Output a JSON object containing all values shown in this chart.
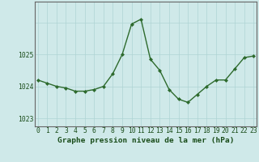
{
  "x": [
    0,
    1,
    2,
    3,
    4,
    5,
    6,
    7,
    8,
    9,
    10,
    11,
    12,
    13,
    14,
    15,
    16,
    17,
    18,
    19,
    20,
    21,
    22,
    23
  ],
  "y": [
    1024.2,
    1024.1,
    1024.0,
    1023.95,
    1023.85,
    1023.85,
    1023.9,
    1024.0,
    1024.4,
    1025.0,
    1025.95,
    1026.1,
    1024.85,
    1024.5,
    1023.9,
    1023.6,
    1023.5,
    1023.75,
    1024.0,
    1024.2,
    1024.2,
    1024.55,
    1024.9,
    1024.95
  ],
  "line_color": "#2d6a2d",
  "marker": "D",
  "marker_size": 2.0,
  "bg_color": "#cfe9e9",
  "grid_color": "#afd4d4",
  "xlabel": "Graphe pression niveau de la mer (hPa)",
  "xlabel_color": "#1a4d1a",
  "xlabel_fontsize": 6.8,
  "xlabel_fontweight": "bold",
  "tick_fontsize": 5.8,
  "tick_color": "#1a4d1a",
  "ylabel_ticks": [
    1023,
    1024,
    1025
  ],
  "xlim": [
    -0.3,
    23.3
  ],
  "ylim": [
    1022.75,
    1026.65
  ],
  "xticks": [
    0,
    1,
    2,
    3,
    4,
    5,
    6,
    7,
    8,
    9,
    10,
    11,
    12,
    13,
    14,
    15,
    16,
    17,
    18,
    19,
    20,
    21,
    22,
    23
  ],
  "axis_color": "#666666",
  "line_width": 1.0
}
